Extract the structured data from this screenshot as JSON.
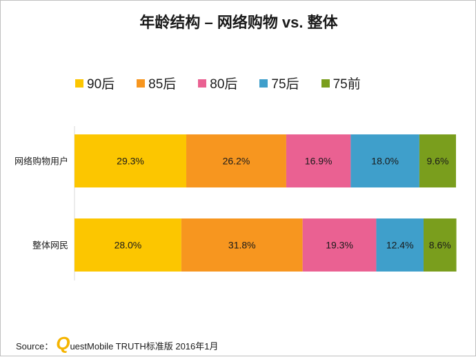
{
  "title": "年龄结构 – 网络购物 vs. 整体",
  "colors": {
    "s90": "#fcc600",
    "s85": "#f7961f",
    "s80": "#ea6192",
    "s75h": "#3f9fcb",
    "s75q": "#7a9e1d"
  },
  "chart_data": {
    "type": "bar",
    "orientation": "horizontal",
    "stacked": true,
    "percent": true,
    "categories": [
      "网络购物用户",
      "整体网民"
    ],
    "series": [
      {
        "name": "90后",
        "values": [
          29.3,
          28.0
        ],
        "labels": [
          "29.3%",
          "28.0%"
        ]
      },
      {
        "name": "85后",
        "values": [
          26.2,
          31.8
        ],
        "labels": [
          "26.2%",
          "31.8%"
        ]
      },
      {
        "name": "80后",
        "values": [
          16.9,
          19.3
        ],
        "labels": [
          "16.9%",
          "19.3%"
        ]
      },
      {
        "name": "75后",
        "values": [
          18.0,
          12.4
        ],
        "labels": [
          "18.0%",
          "12.4%"
        ]
      },
      {
        "name": "75前",
        "values": [
          9.6,
          8.6
        ],
        "labels": [
          "9.6%",
          "8.6%"
        ]
      }
    ],
    "xlim": [
      0,
      100
    ],
    "grid": false,
    "legend": "top"
  },
  "source": {
    "prefix": "Source：",
    "brand_letter": "Q",
    "text": "uestMobile TRUTH标准版 2016年1月"
  }
}
